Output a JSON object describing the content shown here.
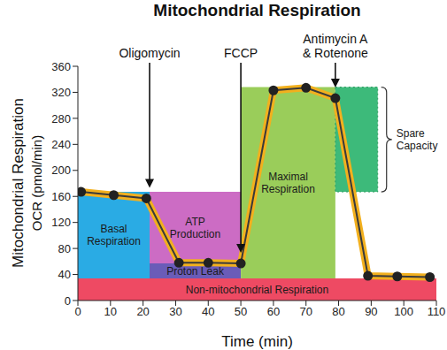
{
  "chart_data": {
    "type": "line",
    "title": "Mitochondrial Respiration",
    "x_label": "Time (min)",
    "y_label": "Mitochondrial Respiration\nOCR (pmol/min)",
    "x": [
      1,
      11,
      21,
      31,
      40,
      50,
      60,
      70,
      79,
      89,
      98,
      108
    ],
    "values": [
      167,
      162,
      157,
      58,
      58,
      57,
      323,
      327,
      311,
      38,
      37,
      36
    ],
    "color": "#f2b01e",
    "marker": "circle",
    "xlim": [
      0,
      110
    ],
    "xticks": [
      0,
      10,
      20,
      30,
      40,
      50,
      60,
      70,
      80,
      90,
      100,
      110
    ],
    "ylim": [
      0,
      360
    ],
    "yticks": [
      0,
      40,
      80,
      120,
      160,
      200,
      240,
      280,
      320,
      360
    ],
    "grid": false,
    "regions": [
      {
        "label": "Non-mitochondrial Respiration",
        "x": [
          0,
          110
        ],
        "y": [
          0,
          34
        ],
        "color": "#ee4a63"
      },
      {
        "label": "Basal\nRespiration",
        "x": [
          0,
          22
        ],
        "y": [
          34,
          167
        ],
        "color": "#2aabe4"
      },
      {
        "label": "ATP\nProduction",
        "x": [
          22,
          50
        ],
        "y": [
          57,
          167
        ],
        "color": "#cc6cc4"
      },
      {
        "label": "Proton Leak",
        "x": [
          22,
          50
        ],
        "y": [
          34,
          57
        ],
        "color": "#6a5cb8"
      },
      {
        "label": "Maximal\nRespiration",
        "x": [
          50,
          79
        ],
        "y": [
          34,
          328
        ],
        "color": "#9acd5a"
      },
      {
        "label": "Spare\nCapacity",
        "x": [
          79,
          92
        ],
        "y": [
          167,
          328
        ],
        "color": "#3dba7a",
        "line_style": "dotted"
      }
    ],
    "annotations": [
      {
        "label": "Oligomycin",
        "x": 22
      },
      {
        "label": "FCCP",
        "x": 50
      },
      {
        "label": "Antimycin A\n& Rotenone",
        "x": 79
      }
    ]
  }
}
